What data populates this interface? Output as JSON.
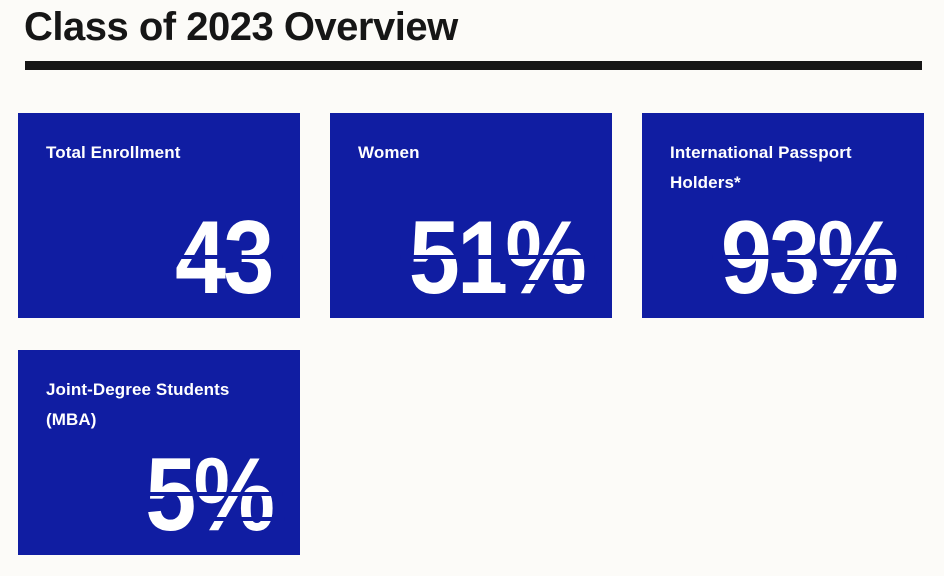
{
  "page": {
    "title": "Class of 2023 Overview"
  },
  "colors": {
    "card_blue": "#101da2",
    "heading_ink": "#161616",
    "background": "#fcfbf8",
    "stat_text": "#ffffff"
  },
  "stats": [
    {
      "label": "Total Enrollment",
      "value": "43"
    },
    {
      "label": "Women",
      "value": "51%"
    },
    {
      "label": "International Passport Holders*",
      "value": "93%"
    },
    {
      "label": "Joint-Degree Students (MBA)",
      "value": "5%"
    }
  ],
  "chart_data": {
    "type": "table",
    "title": "Class of 2023 Overview",
    "categories": [
      "Total Enrollment",
      "Women",
      "International Passport Holders*",
      "Joint-Degree Students (MBA)"
    ],
    "values": [
      43,
      51,
      93,
      5
    ],
    "value_labels": [
      "43",
      "51%",
      "93%",
      "5%"
    ],
    "units": [
      "count",
      "percent",
      "percent",
      "percent"
    ],
    "layout": "3 tiles top row, 1 tile second row"
  }
}
